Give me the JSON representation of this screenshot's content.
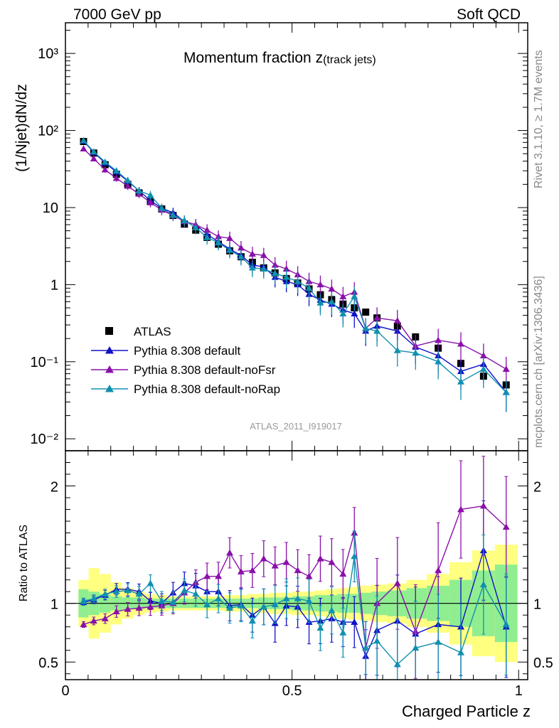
{
  "header": {
    "left": "7000 GeV pp",
    "right": "Soft QCD"
  },
  "side_labels": {
    "upper": "Rivet 3.1.10, ≥ 1.7M events",
    "lower": "mcplots.cern.ch [arXiv:1306.3436]"
  },
  "chart_data": [
    {
      "type": "line",
      "title_main": "Momentum fraction z",
      "title_sub": "(track jets)",
      "ylabel": "(1/Njet)dN/dz",
      "y_scale": "log",
      "ylim": [
        0.007,
        2500
      ],
      "xlim": [
        0,
        1.02
      ],
      "y_tick_labels": [
        "10³",
        "10²",
        "10",
        "1",
        "10⁻¹",
        "10⁻²"
      ],
      "y_tick_values": [
        1000,
        100,
        10,
        1,
        0.1,
        0.01
      ],
      "analysis_label": "ATLAS_2011_I919017",
      "legend_position": "left-middle",
      "x": [
        0.04,
        0.0625,
        0.0875,
        0.1125,
        0.1375,
        0.1625,
        0.1875,
        0.2125,
        0.2375,
        0.2625,
        0.2875,
        0.3125,
        0.3375,
        0.3625,
        0.3875,
        0.4125,
        0.4375,
        0.4625,
        0.4875,
        0.5125,
        0.5375,
        0.5625,
        0.5875,
        0.6125,
        0.6375,
        0.6625,
        0.6875,
        0.7325,
        0.7725,
        0.8225,
        0.8725,
        0.9225,
        0.9725
      ],
      "series": [
        {
          "name": "ATLAS",
          "color": "#000000",
          "marker": "square",
          "values": [
            72,
            51,
            36,
            27,
            20,
            15.5,
            12,
            9.6,
            7.9,
            6.1,
            5.1,
            4.1,
            3.35,
            2.75,
            2.3,
            1.95,
            1.65,
            1.42,
            1.2,
            1.05,
            0.88,
            0.74,
            0.64,
            0.56,
            0.5,
            0.44,
            0.37,
            0.29,
            0.21,
            0.15,
            0.095,
            0.065,
            0.05
          ]
        },
        {
          "name": "Pythia 8.308 default",
          "color": "#1010c8",
          "marker": "triangle",
          "values": [
            73,
            52,
            38,
            29,
            22,
            16.5,
            12.3,
            9.8,
            8.6,
            6.6,
            6.0,
            4.5,
            3.6,
            2.9,
            2.4,
            1.8,
            1.7,
            1.25,
            1.1,
            1.0,
            0.75,
            0.63,
            0.56,
            0.47,
            0.42,
            0.25,
            0.29,
            0.25,
            0.155,
            0.12,
            0.075,
            0.093,
            0.04
          ]
        },
        {
          "name": "Pythia 8.308 default-noFsr",
          "color": "#8a10aa",
          "marker": "triangle",
          "values": [
            58,
            43,
            31,
            24,
            19,
            15,
            11.6,
            9.3,
            7.9,
            6.6,
            6.0,
            5.1,
            4.2,
            4.0,
            3.0,
            2.5,
            2.4,
            1.8,
            1.6,
            1.35,
            1.1,
            1.0,
            0.88,
            0.7,
            0.8,
            0.27,
            0.37,
            0.34,
            0.16,
            0.19,
            0.17,
            0.12,
            0.08
          ]
        },
        {
          "name": "Pythia 8.308 default-noRap",
          "color": "#1090b0",
          "marker": "triangle",
          "values": [
            74,
            53,
            39,
            30,
            22.5,
            16.5,
            14.5,
            9.8,
            8.0,
            6.8,
            5.5,
            4.1,
            3.5,
            2.8,
            2.3,
            1.65,
            1.6,
            1.4,
            1.25,
            1.1,
            0.9,
            0.58,
            0.6,
            0.42,
            0.7,
            0.27,
            0.25,
            0.14,
            0.13,
            0.1,
            0.055,
            0.08,
            0.04
          ]
        }
      ]
    },
    {
      "type": "line",
      "ylabel": "Ratio to ATLAS",
      "xlabel": "Charged Particle z",
      "ylim": [
        0.35,
        2.3
      ],
      "xlim": [
        0,
        1.02
      ],
      "x_tick_labels": [
        "0",
        "0.5",
        "1"
      ],
      "x_tick_values": [
        0,
        0.5,
        1
      ],
      "y_tick_labels": [
        "0.5",
        "1",
        "2"
      ],
      "y_tick_values": [
        0.5,
        1,
        2
      ],
      "bands": {
        "stat_color": "#90ee90",
        "syst_color": "#ffff80",
        "inner_half_width": [
          0.12,
          0.1,
          0.08,
          0.06,
          0.05,
          0.05,
          0.04,
          0.04,
          0.04,
          0.04,
          0.04,
          0.04,
          0.04,
          0.04,
          0.04,
          0.04,
          0.05,
          0.05,
          0.05,
          0.06,
          0.06,
          0.07,
          0.07,
          0.08,
          0.08,
          0.09,
          0.1,
          0.11,
          0.13,
          0.15,
          0.2,
          0.28,
          0.33
        ],
        "outer_half_width": [
          0.2,
          0.3,
          0.25,
          0.18,
          0.13,
          0.1,
          0.08,
          0.07,
          0.06,
          0.06,
          0.06,
          0.06,
          0.06,
          0.07,
          0.07,
          0.08,
          0.08,
          0.09,
          0.09,
          0.1,
          0.1,
          0.11,
          0.12,
          0.13,
          0.14,
          0.15,
          0.16,
          0.17,
          0.2,
          0.25,
          0.35,
          0.45,
          0.5
        ]
      },
      "series": [
        {
          "name": "Pythia 8.308 default",
          "color": "#1010c8",
          "values": [
            1.01,
            1.03,
            1.07,
            1.12,
            1.12,
            1.1,
            1.02,
            1.0,
            1.09,
            1.17,
            1.15,
            1.1,
            1.1,
            0.98,
            0.99,
            0.9,
            0.97,
            0.83,
            0.98,
            0.97,
            0.84,
            0.85,
            0.87,
            0.84,
            0.84,
            0.55,
            0.77,
            0.85,
            0.74,
            0.82,
            0.8,
            1.45,
            0.8
          ]
        },
        {
          "name": "Pythia 8.308 default-noFsr",
          "color": "#8a10aa",
          "values": [
            0.82,
            0.85,
            0.87,
            0.93,
            0.95,
            0.96,
            0.97,
            0.98,
            1.0,
            1.09,
            1.18,
            1.23,
            1.23,
            1.43,
            1.27,
            1.28,
            1.38,
            1.32,
            1.35,
            1.28,
            1.23,
            1.38,
            1.35,
            1.25,
            1.6,
            0.62,
            1.0,
            1.17,
            0.76,
            1.28,
            1.8,
            1.83,
            1.65
          ]
        },
        {
          "name": "Pythia 8.308 default-noRap",
          "color": "#1090b0",
          "values": [
            1.02,
            1.04,
            1.08,
            1.1,
            1.11,
            1.08,
            1.17,
            1.02,
            1.01,
            1.11,
            1.08,
            0.99,
            1.04,
            0.96,
            0.98,
            0.85,
            0.97,
            0.99,
            1.04,
            1.04,
            1.02,
            0.79,
            0.94,
            0.75,
            1.4,
            0.62,
            0.68,
            0.48,
            0.62,
            0.67,
            0.58,
            1.16,
            0.82
          ]
        }
      ]
    }
  ]
}
